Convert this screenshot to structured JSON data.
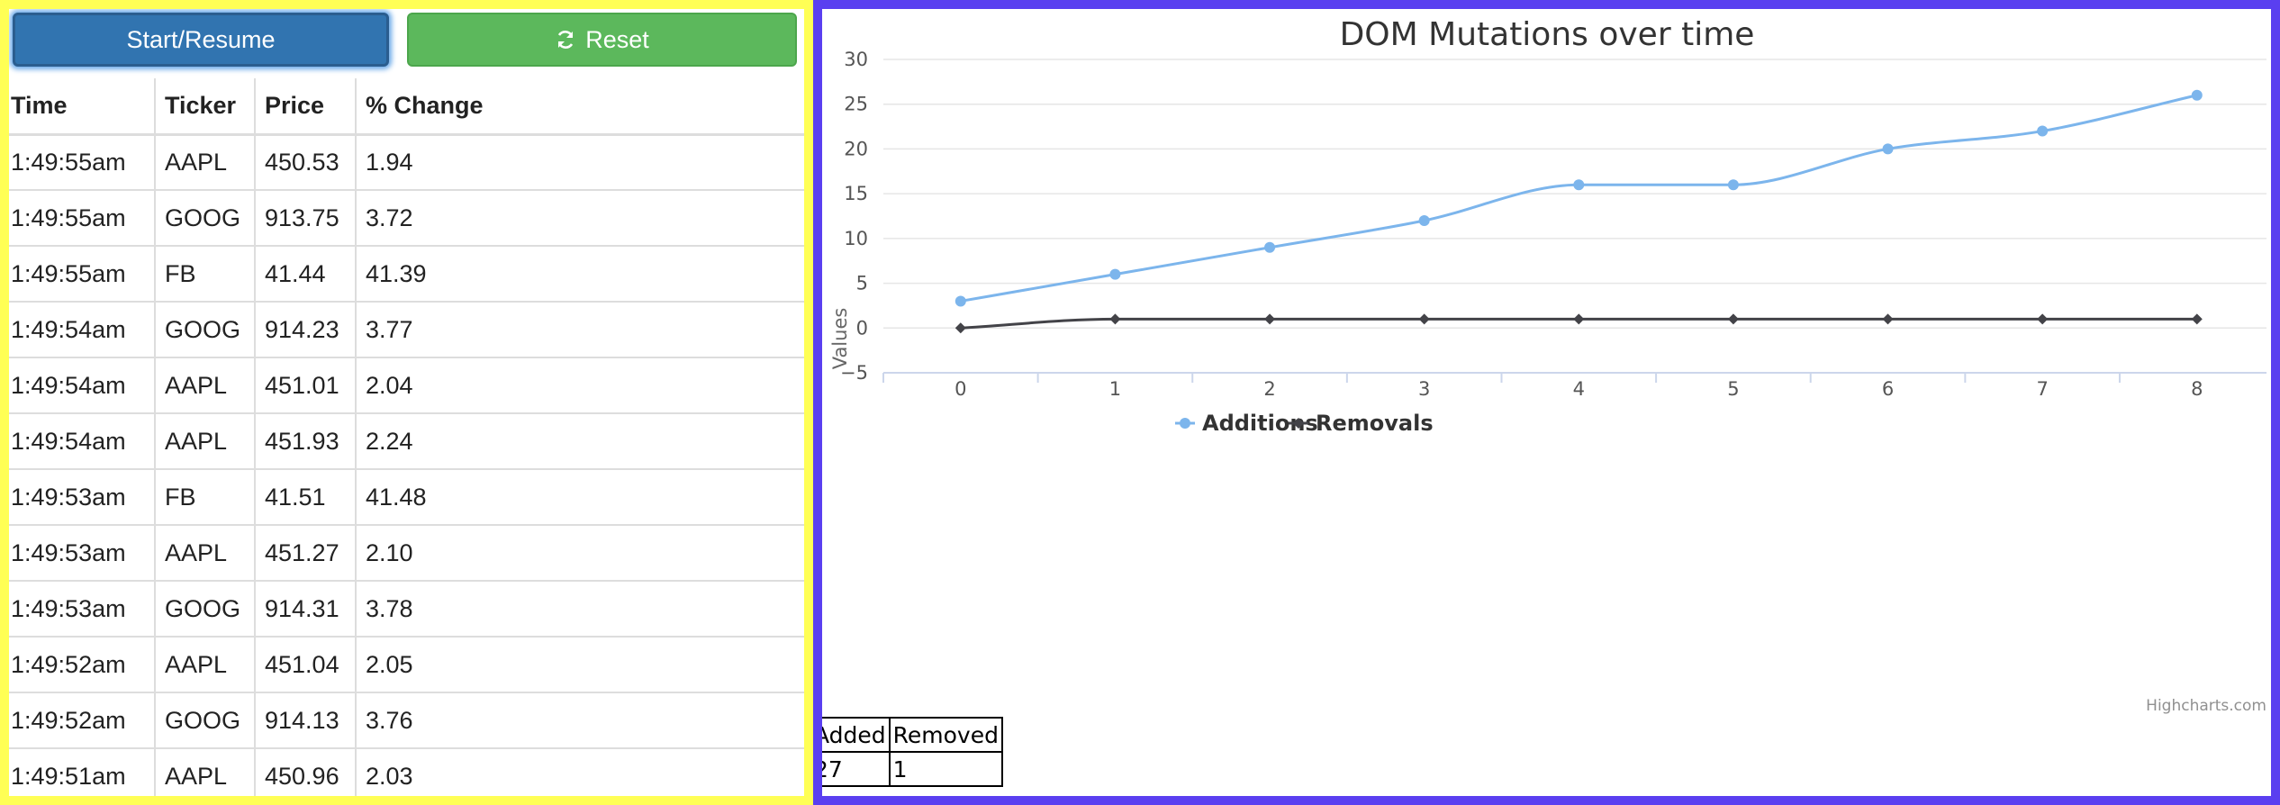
{
  "controls": {
    "start_label": "Start/Resume",
    "reset_label": "Reset",
    "reset_icon": "refresh-icon"
  },
  "ticker_table": {
    "columns": [
      "Time",
      "Ticker",
      "Price",
      "% Change"
    ],
    "rows": [
      [
        "1:49:55am",
        "AAPL",
        "450.53",
        "1.94"
      ],
      [
        "1:49:55am",
        "GOOG",
        "913.75",
        "3.72"
      ],
      [
        "1:49:55am",
        "FB",
        "41.44",
        "41.39"
      ],
      [
        "1:49:54am",
        "GOOG",
        "914.23",
        "3.77"
      ],
      [
        "1:49:54am",
        "AAPL",
        "451.01",
        "2.04"
      ],
      [
        "1:49:54am",
        "AAPL",
        "451.93",
        "2.24"
      ],
      [
        "1:49:53am",
        "FB",
        "41.51",
        "41.48"
      ],
      [
        "1:49:53am",
        "AAPL",
        "451.27",
        "2.10"
      ],
      [
        "1:49:53am",
        "GOOG",
        "914.31",
        "3.78"
      ],
      [
        "1:49:52am",
        "AAPL",
        "451.04",
        "2.05"
      ],
      [
        "1:49:52am",
        "GOOG",
        "914.13",
        "3.76"
      ],
      [
        "1:49:51am",
        "AAPL",
        "450.96",
        "2.03"
      ]
    ]
  },
  "chart_data": {
    "type": "line",
    "title": "DOM Mutations over time",
    "xlabel": "",
    "ylabel": "Values",
    "x": [
      0,
      1,
      2,
      3,
      4,
      5,
      6,
      7,
      8
    ],
    "xlim": [
      -0.5,
      8.45
    ],
    "ylim": [
      -5,
      30
    ],
    "yticks": [
      -5,
      0,
      5,
      10,
      15,
      20,
      25,
      30
    ],
    "y_tick_labels": [
      "−5",
      "0",
      "5",
      "10",
      "15",
      "20",
      "25",
      "30"
    ],
    "grid": true,
    "legend": "bottom-center",
    "credits": "Highcharts.com",
    "series": [
      {
        "name": "Additions",
        "values": [
          3,
          6,
          9,
          12,
          16,
          16,
          20,
          22,
          26
        ],
        "color": "#7cb5ec",
        "marker": "circle"
      },
      {
        "name": "Removals",
        "values": [
          0,
          1,
          1,
          1,
          1,
          1,
          1,
          1,
          1
        ],
        "color": "#434348",
        "marker": "diamond"
      }
    ]
  },
  "counts_table": {
    "headers": [
      "Added",
      "Removed"
    ],
    "values": [
      "27",
      "1"
    ]
  },
  "colors": {
    "left_border": "#ffff55",
    "right_border": "#5a3ff0",
    "primary_button": "#3174b0",
    "success_button": "#5cb85c"
  }
}
